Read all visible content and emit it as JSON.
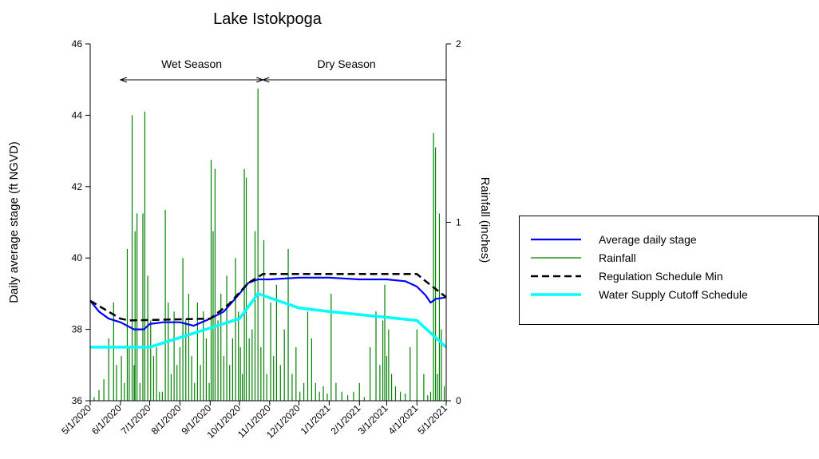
{
  "chart_data": {
    "type": "line",
    "title": "Lake Istokpoga",
    "ylabel": "Daily average stage (ft NGVD)",
    "y2label": "Rainfall (inches)",
    "ylim": [
      36,
      46
    ],
    "y2lim": [
      0,
      2
    ],
    "xlim": [
      "2020-05-01",
      "2021-05-01"
    ],
    "yticks": [
      36,
      38,
      40,
      42,
      44,
      46
    ],
    "y2ticks": [
      0,
      1,
      2
    ],
    "xticks": [
      "2020-05-01",
      "2020-06-01",
      "2020-07-01",
      "2020-08-01",
      "2020-09-01",
      "2020-10-01",
      "2020-11-01",
      "2020-12-01",
      "2021-01-01",
      "2021-02-01",
      "2021-03-01",
      "2021-04-01",
      "2021-05-01"
    ],
    "xtick_labels": [
      "5/1/2020",
      "6/1/2020",
      "7/1/2020",
      "8/1/2020",
      "9/1/2020",
      "10/1/2020",
      "11/1/2020",
      "12/1/2020",
      "1/1/2021",
      "2/1/2021",
      "3/1/2021",
      "4/1/2021",
      "5/1/2021"
    ],
    "grid": false,
    "legend_position": "right",
    "annotations": [
      {
        "text": "Wet Season",
        "from": "2020-06-01",
        "to": "2020-10-25"
      },
      {
        "text": "Dry Season",
        "from": "2020-10-25",
        "to": "2021-05-01"
      }
    ],
    "series": [
      {
        "name": "Average daily stage",
        "style": "line",
        "axis": "left",
        "color": "#0000ff",
        "x": [
          "2020-05-01",
          "2020-05-10",
          "2020-05-20",
          "2020-06-01",
          "2020-06-15",
          "2020-06-25",
          "2020-07-01",
          "2020-07-15",
          "2020-08-01",
          "2020-08-15",
          "2020-09-01",
          "2020-09-15",
          "2020-10-01",
          "2020-10-10",
          "2020-10-20",
          "2020-11-01",
          "2020-12-01",
          "2021-01-01",
          "2021-02-01",
          "2021-03-01",
          "2021-03-20",
          "2021-04-01",
          "2021-04-10",
          "2021-04-15",
          "2021-04-20",
          "2021-05-01"
        ],
        "y": [
          38.8,
          38.5,
          38.3,
          38.2,
          38.0,
          38.0,
          38.15,
          38.2,
          38.2,
          38.1,
          38.3,
          38.5,
          39.0,
          39.3,
          39.4,
          39.4,
          39.45,
          39.45,
          39.4,
          39.4,
          39.35,
          39.2,
          38.95,
          38.75,
          38.85,
          38.9
        ]
      },
      {
        "name": "Regulation Schedule Min",
        "style": "dashed",
        "axis": "left",
        "color": "#000000",
        "x": [
          "2020-05-01",
          "2020-06-01",
          "2020-06-10",
          "2020-09-01",
          "2020-09-20",
          "2020-10-10",
          "2020-10-25",
          "2021-04-01",
          "2021-04-10",
          "2021-05-01"
        ],
        "y": [
          38.8,
          38.3,
          38.25,
          38.3,
          38.7,
          39.3,
          39.55,
          39.55,
          39.35,
          38.9
        ]
      },
      {
        "name": "Water Supply Cutoff Schedule",
        "style": "line",
        "axis": "left",
        "color": "#00ffff",
        "x": [
          "2020-05-01",
          "2020-07-01",
          "2020-10-01",
          "2020-10-20",
          "2020-12-01",
          "2021-01-01",
          "2021-04-01",
          "2021-05-01"
        ],
        "y": [
          37.5,
          37.5,
          38.3,
          39.0,
          38.6,
          38.5,
          38.25,
          37.5
        ]
      },
      {
        "name": "Rainfall",
        "style": "bars",
        "axis": "right",
        "color": "#008000",
        "x": [
          "2020-05-05",
          "2020-05-10",
          "2020-05-15",
          "2020-05-20",
          "2020-05-25",
          "2020-05-28",
          "2020-06-02",
          "2020-06-05",
          "2020-06-08",
          "2020-06-10",
          "2020-06-13",
          "2020-06-15",
          "2020-06-16",
          "2020-06-18",
          "2020-06-21",
          "2020-06-24",
          "2020-06-26",
          "2020-06-29",
          "2020-07-02",
          "2020-07-05",
          "2020-07-08",
          "2020-07-11",
          "2020-07-14",
          "2020-07-17",
          "2020-07-20",
          "2020-07-23",
          "2020-07-26",
          "2020-07-29",
          "2020-08-01",
          "2020-08-04",
          "2020-08-07",
          "2020-08-10",
          "2020-08-13",
          "2020-08-16",
          "2020-08-19",
          "2020-08-22",
          "2020-08-25",
          "2020-08-28",
          "2020-08-31",
          "2020-09-02",
          "2020-09-04",
          "2020-09-06",
          "2020-09-09",
          "2020-09-12",
          "2020-09-15",
          "2020-09-18",
          "2020-09-21",
          "2020-09-24",
          "2020-09-27",
          "2020-09-30",
          "2020-10-02",
          "2020-10-04",
          "2020-10-06",
          "2020-10-08",
          "2020-10-11",
          "2020-10-14",
          "2020-10-17",
          "2020-10-20",
          "2020-10-23",
          "2020-10-26",
          "2020-10-29",
          "2020-11-02",
          "2020-11-05",
          "2020-11-08",
          "2020-11-12",
          "2020-11-16",
          "2020-11-20",
          "2020-11-24",
          "2020-11-28",
          "2020-12-02",
          "2020-12-06",
          "2020-12-10",
          "2020-12-14",
          "2020-12-18",
          "2020-12-22",
          "2020-12-26",
          "2020-12-30",
          "2021-01-03",
          "2021-01-08",
          "2021-01-14",
          "2021-01-20",
          "2021-01-26",
          "2021-02-01",
          "2021-02-06",
          "2021-02-12",
          "2021-02-18",
          "2021-02-22",
          "2021-02-25",
          "2021-02-27",
          "2021-03-01",
          "2021-03-03",
          "2021-03-06",
          "2021-03-10",
          "2021-03-15",
          "2021-03-20",
          "2021-03-25",
          "2021-04-01",
          "2021-04-08",
          "2021-04-12",
          "2021-04-15",
          "2021-04-18",
          "2021-04-20",
          "2021-04-22",
          "2021-04-24",
          "2021-04-26",
          "2021-04-29"
        ],
        "y": [
          0.02,
          0.06,
          0.12,
          0.35,
          0.55,
          0.2,
          0.25,
          0.1,
          0.85,
          0.3,
          1.6,
          0.2,
          0.95,
          1.05,
          0.1,
          1.05,
          1.62,
          0.7,
          0.45,
          0.25,
          0.3,
          0.05,
          0.05,
          1.07,
          0.55,
          0.15,
          0.5,
          0.2,
          0.3,
          0.8,
          0.45,
          0.6,
          0.25,
          0.1,
          0.55,
          0.2,
          0.5,
          0.35,
          0.1,
          1.35,
          0.95,
          1.3,
          0.45,
          0.6,
          0.25,
          0.7,
          0.2,
          0.35,
          0.8,
          0.5,
          0.3,
          0.15,
          1.3,
          1.25,
          0.35,
          0.4,
          0.95,
          1.75,
          0.3,
          0.9,
          0.15,
          0.55,
          0.25,
          0.65,
          0.2,
          0.4,
          0.85,
          0.15,
          0.3,
          0.05,
          0.1,
          0.5,
          0.35,
          0.1,
          0.05,
          0.08,
          0.04,
          0.6,
          0.1,
          0.05,
          0.03,
          0.05,
          0.1,
          0.02,
          0.3,
          0.5,
          0.2,
          0.45,
          0.65,
          0.25,
          0.4,
          0.15,
          0.08,
          0.05,
          0.04,
          0.3,
          0.4,
          0.15,
          0.03,
          0.05,
          1.5,
          1.42,
          0.15,
          1.05,
          0.4,
          0.08
        ]
      }
    ]
  }
}
